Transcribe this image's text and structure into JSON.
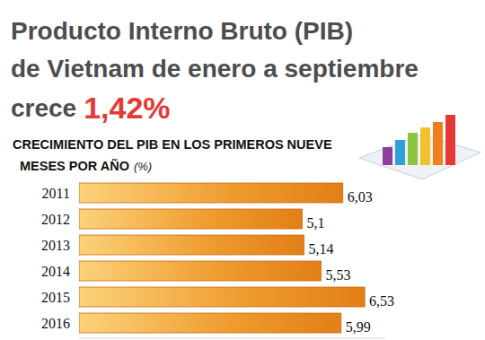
{
  "chart_data": {
    "type": "bar",
    "orientation": "horizontal",
    "title": [
      "Producto Interno Bruto (PIB)",
      "de Vietnam de enero a septiembre",
      "crece"
    ],
    "annotations": [
      "1,42%"
    ],
    "subtitle": [
      "CRECIMIENTO DEL PIB EN LOS PRIMEROS NUEVE",
      "MESES POR AÑO"
    ],
    "xlabel": "(%)",
    "categories": [
      "2011",
      "2012",
      "2013",
      "2014",
      "2015",
      "2016"
    ],
    "values": [
      6.03,
      5.1,
      5.14,
      5.53,
      6.53,
      5.99
    ],
    "value_labels": [
      "6,03",
      "5,1",
      "5,14",
      "5,53",
      "6,53",
      "5,99"
    ],
    "data_labels": true,
    "color": "#ee9a2c",
    "xlim": [
      0,
      7
    ],
    "grid": false,
    "tick_labels": false
  }
}
